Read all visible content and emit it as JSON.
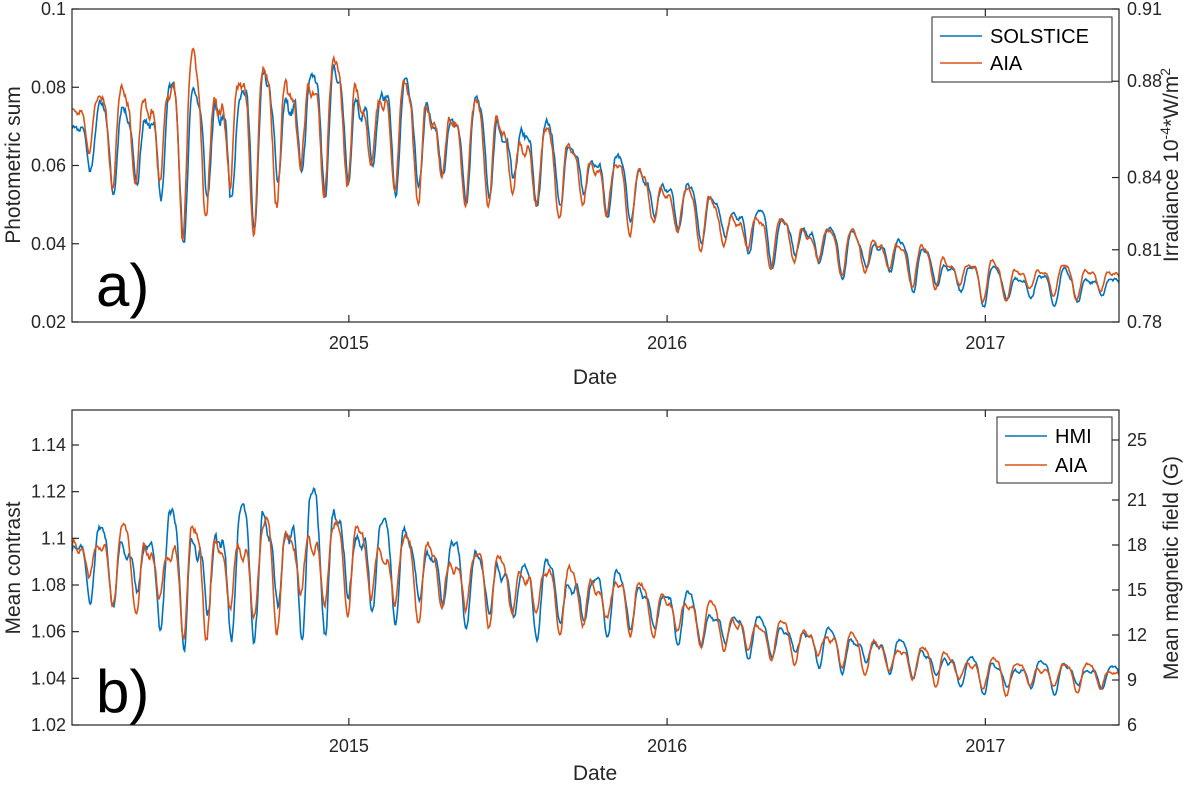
{
  "colors": {
    "blue": "#0072BD",
    "orange": "#D95319",
    "axis": "#262626",
    "frame": "#262626"
  },
  "chart_data": [
    {
      "type": "line",
      "panel_label": "a)",
      "xlabel": "Date",
      "ylabel_left": "Photometric sum",
      "ylabel_right_base": "Irradiance 10",
      "ylabel_right_exp": "-4",
      "ylabel_right_unit": "*W/m",
      "ylabel_right_unit_exp": "2",
      "xlim": [
        2014.13,
        2017.42
      ],
      "xticks": [
        2015,
        2016,
        2017
      ],
      "xtick_labels": [
        "2015",
        "2016",
        "2017"
      ],
      "ylim_left": [
        0.02,
        0.1
      ],
      "yticks_left": [
        0.02,
        0.04,
        0.06,
        0.08,
        0.1
      ],
      "ytick_labels_left": [
        "0.02",
        "0.04",
        "0.06",
        "0.08",
        "0.1"
      ],
      "ylim_right": [
        0.78,
        0.91
      ],
      "yticks_right": [
        0.78,
        0.81,
        0.84,
        0.88,
        0.91
      ],
      "ytick_labels_right": [
        "0.78",
        "0.81",
        "0.84",
        "0.88",
        "0.91"
      ],
      "legend_position": "top-right",
      "series": [
        {
          "name": "SOLSTICE",
          "color": "blue",
          "seed": 11,
          "phase": 0.0,
          "trend": [
            [
              2014.13,
              0.068
            ],
            [
              2014.5,
              0.066
            ],
            [
              2014.95,
              0.072
            ],
            [
              2015.5,
              0.064
            ],
            [
              2015.9,
              0.054
            ],
            [
              2016.3,
              0.043
            ],
            [
              2016.7,
              0.037
            ],
            [
              2017.0,
              0.03
            ],
            [
              2017.42,
              0.029
            ]
          ],
          "amplitude": [
            [
              2014.13,
              0.007
            ],
            [
              2014.5,
              0.02
            ],
            [
              2014.95,
              0.015
            ],
            [
              2015.5,
              0.012
            ],
            [
              2016.0,
              0.007
            ],
            [
              2016.5,
              0.006
            ],
            [
              2017.42,
              0.004
            ]
          ]
        },
        {
          "name": "AIA",
          "color": "orange",
          "seed": 23,
          "phase": 0.05,
          "trend": [
            [
              2014.13,
              0.072
            ],
            [
              2014.5,
              0.068
            ],
            [
              2014.95,
              0.073
            ],
            [
              2015.5,
              0.063
            ],
            [
              2015.9,
              0.053
            ],
            [
              2016.3,
              0.042
            ],
            [
              2016.7,
              0.037
            ],
            [
              2017.0,
              0.031
            ],
            [
              2017.42,
              0.031
            ]
          ],
          "amplitude": [
            [
              2014.13,
              0.007
            ],
            [
              2014.5,
              0.022
            ],
            [
              2014.95,
              0.016
            ],
            [
              2015.5,
              0.012
            ],
            [
              2016.0,
              0.007
            ],
            [
              2016.5,
              0.006
            ],
            [
              2017.42,
              0.004
            ]
          ]
        }
      ]
    },
    {
      "type": "line",
      "panel_label": "b)",
      "xlabel": "Date",
      "ylabel_left": "Mean contrast",
      "ylabel_right": "Mean magnetic field (G)",
      "xlim": [
        2014.13,
        2017.42
      ],
      "xticks": [
        2015,
        2016,
        2017
      ],
      "xtick_labels": [
        "2015",
        "2016",
        "2017"
      ],
      "ylim_left": [
        1.02,
        1.155
      ],
      "yticks_left": [
        1.02,
        1.04,
        1.06,
        1.08,
        1.1,
        1.12,
        1.14
      ],
      "ytick_labels_left": [
        "1.02",
        "1.04",
        "1.06",
        "1.08",
        "1.1",
        "1.12",
        "1.14"
      ],
      "ylim_right": [
        6,
        27
      ],
      "yticks_right": [
        6,
        9,
        12,
        15,
        18,
        21,
        25
      ],
      "ytick_labels_right": [
        "6",
        "9",
        "12",
        "15",
        "18",
        "21",
        "25"
      ],
      "legend_position": "top-right",
      "series": [
        {
          "name": "HMI",
          "color": "blue",
          "seed": 37,
          "phase": 0.0,
          "trend": [
            [
              2014.13,
              1.092
            ],
            [
              2014.5,
              1.086
            ],
            [
              2014.95,
              1.094
            ],
            [
              2015.5,
              1.08
            ],
            [
              2015.9,
              1.072
            ],
            [
              2016.3,
              1.058
            ],
            [
              2016.7,
              1.05
            ],
            [
              2017.0,
              1.042
            ],
            [
              2017.42,
              1.041
            ]
          ],
          "amplitude": [
            [
              2014.13,
              0.012
            ],
            [
              2014.5,
              0.028
            ],
            [
              2014.85,
              0.032
            ],
            [
              2015.2,
              0.018
            ],
            [
              2015.8,
              0.013
            ],
            [
              2016.3,
              0.009
            ],
            [
              2017.42,
              0.006
            ]
          ]
        },
        {
          "name": "AIA",
          "color": "orange",
          "seed": 41,
          "phase": 0.04,
          "trend": [
            [
              2014.13,
              1.092
            ],
            [
              2014.5,
              1.085
            ],
            [
              2014.95,
              1.092
            ],
            [
              2015.5,
              1.08
            ],
            [
              2015.9,
              1.072
            ],
            [
              2016.3,
              1.058
            ],
            [
              2016.7,
              1.05
            ],
            [
              2017.0,
              1.042
            ],
            [
              2017.42,
              1.041
            ]
          ],
          "amplitude": [
            [
              2014.13,
              0.012
            ],
            [
              2014.5,
              0.024
            ],
            [
              2014.85,
              0.022
            ],
            [
              2015.2,
              0.017
            ],
            [
              2015.8,
              0.013
            ],
            [
              2016.3,
              0.009
            ],
            [
              2017.42,
              0.006
            ]
          ]
        }
      ]
    }
  ]
}
